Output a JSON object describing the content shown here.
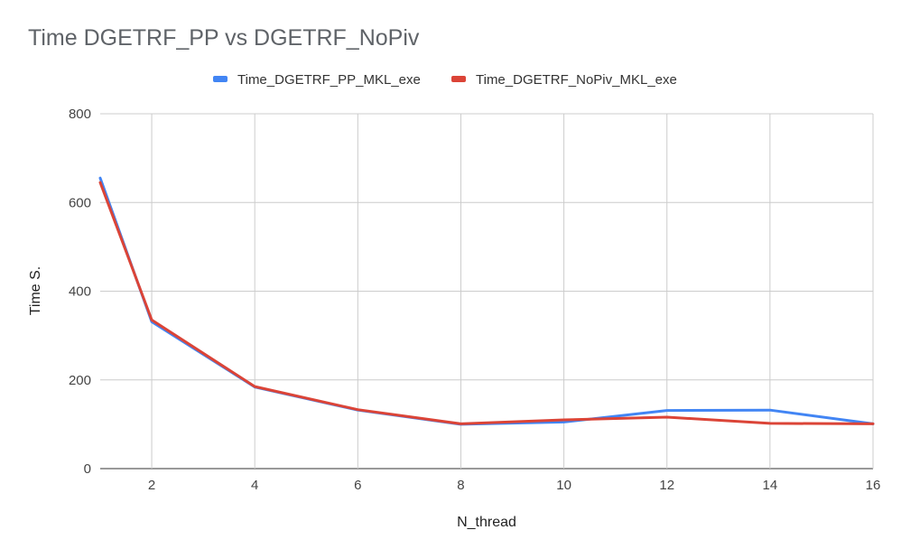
{
  "chart_data": {
    "type": "line",
    "title": "Time DGETRF_PP vs DGETRF_NoPiv",
    "xlabel": "N_thread",
    "ylabel": "Time S.",
    "x": [
      1,
      2,
      4,
      6,
      8,
      10,
      12,
      14,
      16
    ],
    "xticks": [
      2,
      4,
      6,
      8,
      10,
      12,
      14,
      16
    ],
    "yticks": [
      0,
      200,
      400,
      600,
      800
    ],
    "xlim": [
      1,
      16
    ],
    "ylim": [
      0,
      800
    ],
    "grid": true,
    "legend_position": "top",
    "series": [
      {
        "name": "Time_DGETRF_PP_MKL_exe",
        "color": "#4285f4",
        "values": [
          655,
          331,
          184,
          132,
          100,
          105,
          131,
          132,
          101
        ]
      },
      {
        "name": "Time_DGETRF_NoPiv_MKL_exe",
        "color": "#db4437",
        "values": [
          645,
          335,
          185,
          133,
          101,
          110,
          116,
          102,
          101
        ]
      }
    ]
  }
}
